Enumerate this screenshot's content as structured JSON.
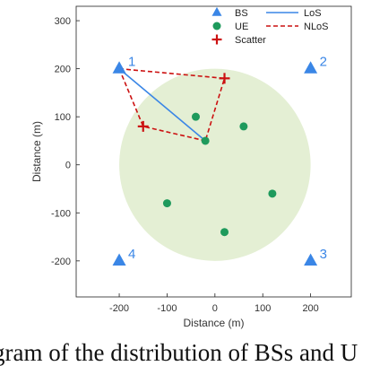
{
  "chart_data": {
    "type": "scatter",
    "xlabel": "Distance (m)",
    "ylabel": "Distance (m)",
    "xlim": [
      -290,
      285
    ],
    "ylim": [
      -275,
      330
    ],
    "xticks": [
      -200,
      -100,
      0,
      100,
      200
    ],
    "yticks": [
      300,
      200,
      100,
      0,
      -100,
      -200
    ],
    "grid": false,
    "legend_position": "top-right",
    "coverage_region": {
      "center": [
        0,
        0
      ],
      "radius": 200,
      "color": "#e4efd4"
    },
    "base_stations": {
      "name": "BS",
      "color": "#3a86e6",
      "points": [
        {
          "x": -200,
          "y": 200,
          "label": "1"
        },
        {
          "x": 200,
          "y": 200,
          "label": "2"
        },
        {
          "x": 200,
          "y": -200,
          "label": "3"
        },
        {
          "x": -200,
          "y": -200,
          "label": "4"
        }
      ]
    },
    "user_equipment": {
      "name": "UE",
      "color": "#1e9a5c",
      "points": [
        {
          "x": -20,
          "y": 50
        },
        {
          "x": -40,
          "y": 100
        },
        {
          "x": 60,
          "y": 80
        },
        {
          "x": 120,
          "y": -60
        },
        {
          "x": -100,
          "y": -80
        },
        {
          "x": 20,
          "y": -140
        }
      ]
    },
    "scatterers": {
      "name": "Scatter",
      "color": "#cc1111",
      "points": [
        {
          "x": 20,
          "y": 180
        },
        {
          "x": -150,
          "y": 80
        }
      ]
    },
    "los_path": {
      "name": "LoS",
      "color": "#3a86e6",
      "points": [
        [
          -200,
          200
        ],
        [
          -20,
          50
        ]
      ]
    },
    "nlos_paths": {
      "name": "NLoS",
      "color": "#cc1111",
      "paths": [
        [
          [
            -200,
            200
          ],
          [
            20,
            180
          ],
          [
            -20,
            50
          ]
        ],
        [
          [
            -200,
            200
          ],
          [
            -150,
            80
          ],
          [
            -20,
            50
          ]
        ]
      ]
    }
  },
  "caption": "gram of the distribution of BSs and U"
}
